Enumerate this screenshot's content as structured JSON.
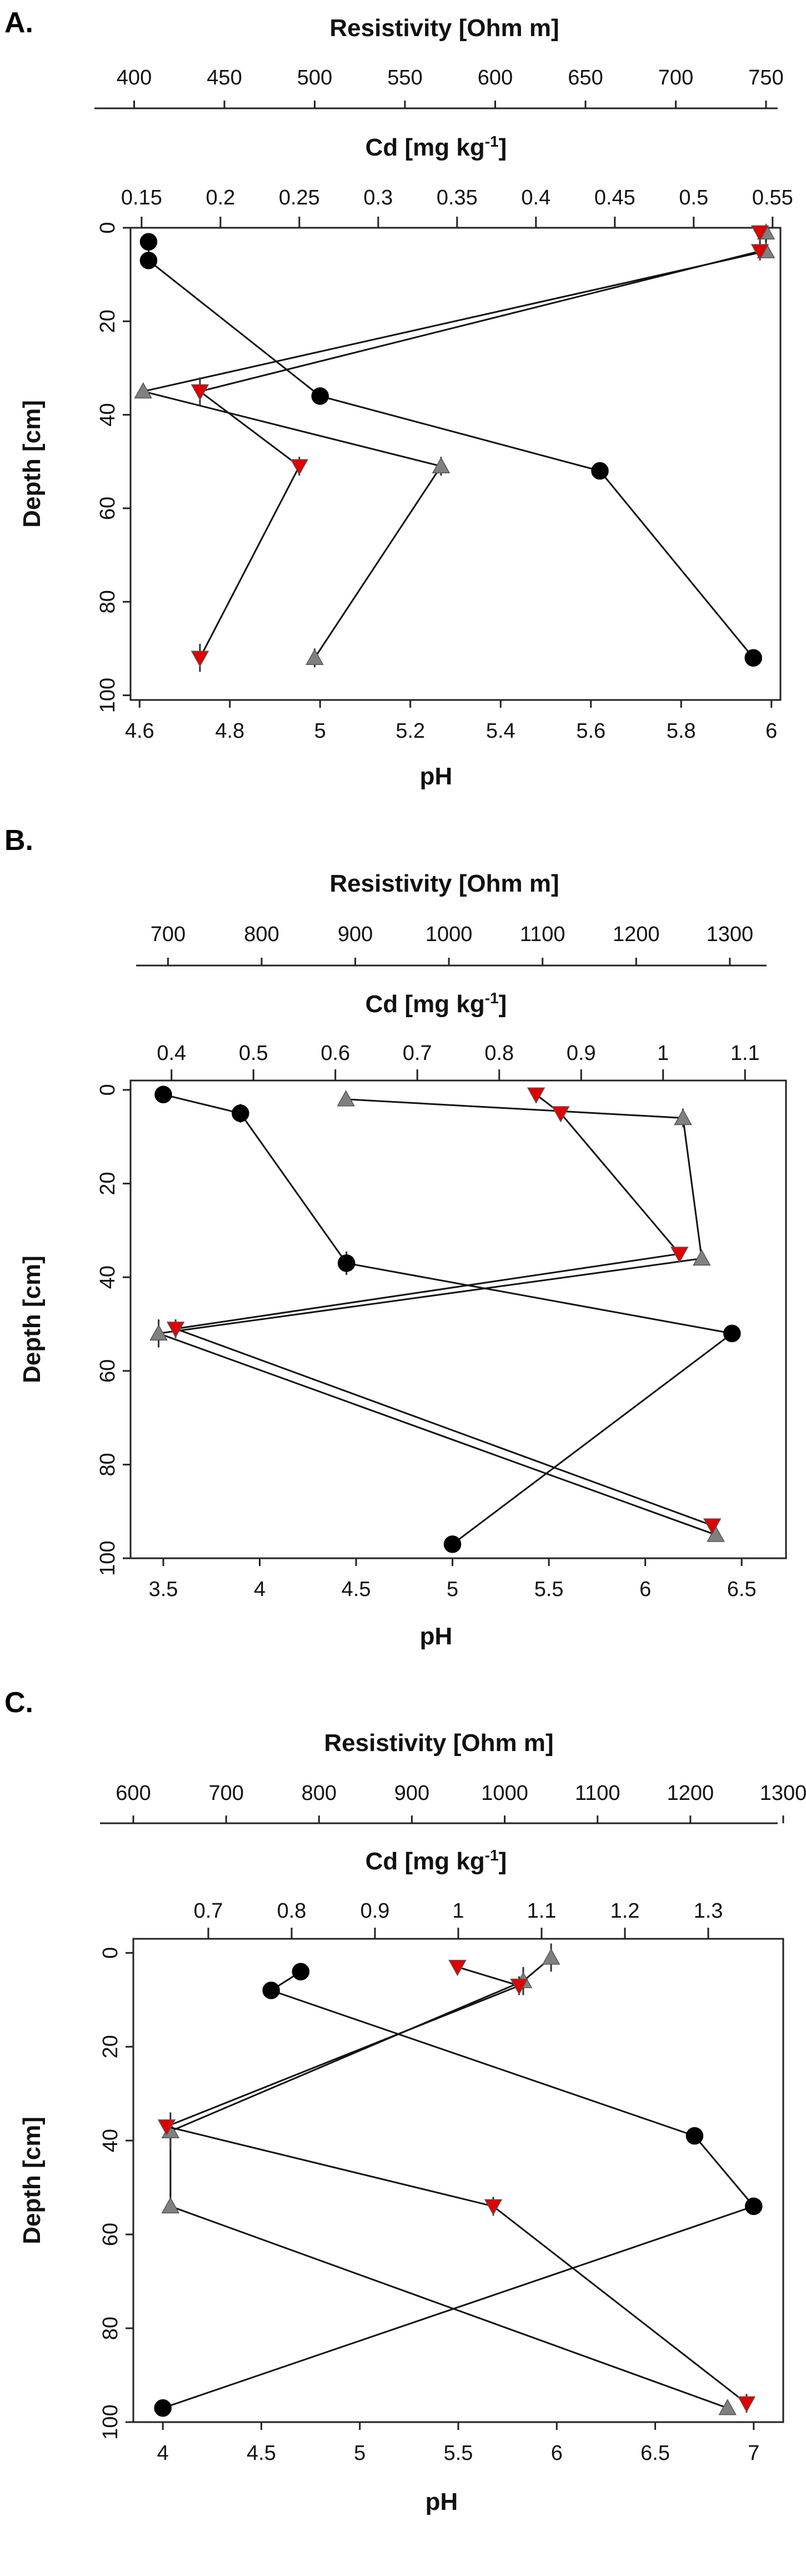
{
  "figure": {
    "panel_count": 3
  },
  "colors": {
    "pH": "#000000",
    "Cd": "#e00000",
    "Resistivity": "#808080",
    "axis": "#222222"
  },
  "legend_markers": {
    "pH": "black circle",
    "Cd": "red down-triangle",
    "Resistivity": "grey up-triangle"
  },
  "chart_data": [
    {
      "panel": "A.",
      "type": "line",
      "ylabel": "Depth [cm]",
      "yticks": [
        0,
        20,
        40,
        60,
        80,
        100
      ],
      "ylim": [
        0,
        101
      ],
      "axes": {
        "pH": {
          "label": "pH",
          "ticks": [
            4.6,
            4.8,
            5,
            5.2,
            5.4,
            5.6,
            5.8,
            6
          ],
          "tick_labels": [
            "4.6",
            "4.8",
            "5",
            "5.2",
            "5.4",
            "5.6",
            "5.8",
            "6"
          ],
          "range": [
            4.58,
            6.02
          ]
        },
        "Cd": {
          "label": "Cd [mg kg-1]",
          "label_main": "Cd [mg kg",
          "label_sup": "-1",
          "label_end": "]",
          "ticks": [
            0.15,
            0.2,
            0.25,
            0.3,
            0.35,
            0.4,
            0.45,
            0.5,
            0.55
          ],
          "tick_labels": [
            "0.15",
            "0.2",
            "0.25",
            "0.3",
            "0.35",
            "0.4",
            "0.45",
            "0.5",
            "0.55"
          ],
          "range": [
            0.143,
            0.555
          ]
        },
        "Resistivity": {
          "label": "Resistivity [Ohm m]",
          "ticks": [
            400,
            450,
            500,
            550,
            600,
            650,
            700,
            750
          ],
          "tick_labels": [
            "400",
            "450",
            "500",
            "550",
            "600",
            "650",
            "700",
            "750"
          ],
          "range": [
            398,
            758
          ]
        }
      },
      "series": [
        {
          "name": "pH",
          "marker": "circle",
          "points": [
            {
              "x": 4.62,
              "depth": 3,
              "err": 0
            },
            {
              "x": 4.62,
              "depth": 7,
              "err": 0
            },
            {
              "x": 5.0,
              "depth": 36,
              "err": 0
            },
            {
              "x": 5.62,
              "depth": 52,
              "err": 1.8
            },
            {
              "x": 5.96,
              "depth": 92,
              "err": 0
            }
          ]
        },
        {
          "name": "Cd",
          "marker": "triangle-down",
          "points": [
            {
              "x": 0.542,
              "depth": 1,
              "err": 0
            },
            {
              "x": 0.542,
              "depth": 5,
              "err": 2
            },
            {
              "x": 0.187,
              "depth": 35,
              "err": 3
            },
            {
              "x": 0.25,
              "depth": 51,
              "err": 2
            },
            {
              "x": 0.187,
              "depth": 92,
              "err": 3
            }
          ]
        },
        {
          "name": "Resistivity",
          "marker": "triangle-up",
          "points": [
            {
              "x": 750,
              "depth": 1,
              "err": 0
            },
            {
              "x": 750,
              "depth": 5,
              "err": 1
            },
            {
              "x": 405,
              "depth": 35,
              "err": 0
            },
            {
              "x": 570,
              "depth": 51,
              "err": 2
            },
            {
              "x": 500,
              "depth": 92,
              "err": 2
            }
          ]
        }
      ]
    },
    {
      "panel": "B.",
      "type": "line",
      "ylabel": "Depth [cm]",
      "yticks": [
        0,
        20,
        40,
        60,
        80,
        100
      ],
      "ylim": [
        -2,
        100
      ],
      "axes": {
        "pH": {
          "label": "pH",
          "ticks": [
            3.5,
            4,
            4.5,
            5,
            5.5,
            6,
            6.5
          ],
          "tick_labels": [
            "3.5",
            "4",
            "4.5",
            "5",
            "5.5",
            "6",
            "6.5"
          ],
          "range": [
            3.33,
            6.73
          ]
        },
        "Cd": {
          "label": "Cd [mg kg-1]",
          "label_main": "Cd [mg kg",
          "label_sup": "-1",
          "label_end": "]",
          "ticks": [
            0.4,
            0.5,
            0.6,
            0.7,
            0.8,
            0.9,
            1,
            1.1
          ],
          "tick_labels": [
            "0.4",
            "0.5",
            "0.6",
            "0.7",
            "0.8",
            "0.9",
            "1",
            "1.1"
          ],
          "range": [
            0.35,
            1.15
          ]
        },
        "Resistivity": {
          "label": "Resistivity [Ohm m]",
          "ticks": [
            700,
            800,
            900,
            1000,
            1100,
            1200,
            1300
          ],
          "tick_labels": [
            "700",
            "800",
            "900",
            "1000",
            "1100",
            "1200",
            "1300"
          ],
          "range": [
            660,
            1360
          ]
        }
      },
      "series": [
        {
          "name": "pH",
          "marker": "circle",
          "points": [
            {
              "x": 3.5,
              "depth": 1,
              "err": 0
            },
            {
              "x": 3.9,
              "depth": 5,
              "err": 2
            },
            {
              "x": 4.45,
              "depth": 37,
              "err": 2.5
            },
            {
              "x": 6.45,
              "depth": 52,
              "err": 1
            },
            {
              "x": 5.0,
              "depth": 97,
              "err": 0
            }
          ]
        },
        {
          "name": "Cd",
          "marker": "triangle-down",
          "points": [
            {
              "x": 0.845,
              "depth": 1,
              "err": 1
            },
            {
              "x": 0.875,
              "depth": 5,
              "err": 1
            },
            {
              "x": 1.02,
              "depth": 35,
              "err": 0
            },
            {
              "x": 0.405,
              "depth": 51,
              "err": 2
            },
            {
              "x": 1.06,
              "depth": 93,
              "err": 0
            }
          ]
        },
        {
          "name": "Resistivity",
          "marker": "triangle-up",
          "points": [
            {
              "x": 890,
              "depth": 2,
              "err": 0
            },
            {
              "x": 1250,
              "depth": 6,
              "err": 2
            },
            {
              "x": 1270,
              "depth": 36,
              "err": 0
            },
            {
              "x": 690,
              "depth": 52,
              "err": 3
            },
            {
              "x": 1285,
              "depth": 95,
              "err": 1
            }
          ]
        }
      ]
    },
    {
      "panel": "C.",
      "type": "line",
      "ylabel": "Depth [cm]",
      "yticks": [
        0,
        20,
        40,
        60,
        80,
        100
      ],
      "ylim": [
        -3,
        100
      ],
      "axes": {
        "pH": {
          "label": "pH",
          "ticks": [
            4,
            4.5,
            5,
            5.5,
            6,
            6.5,
            7
          ],
          "tick_labels": [
            "4",
            "4.5",
            "5",
            "5.5",
            "6",
            "6.5",
            "7"
          ],
          "range": [
            3.85,
            7.15
          ]
        },
        "Cd": {
          "label": "Cd [mg kg-1]",
          "label_main": "Cd [mg kg",
          "label_sup": "-1",
          "label_end": "]",
          "ticks": [
            0.7,
            0.8,
            0.9,
            1,
            1.1,
            1.2,
            1.3
          ],
          "tick_labels": [
            "0.7",
            "0.8",
            "0.9",
            "1",
            "1.1",
            "1.2",
            "1.3"
          ],
          "range": [
            0.61,
            1.39
          ]
        },
        "Resistivity": {
          "label": "Resistivity [Ohm m]",
          "ticks": [
            600,
            700,
            800,
            900,
            1000,
            1100,
            1200,
            1300
          ],
          "tick_labels": [
            "600",
            "700",
            "800",
            "900",
            "1000",
            "1100",
            "1200",
            "1300"
          ],
          "range": [
            600,
            1300
          ]
        }
      },
      "series": [
        {
          "name": "pH",
          "marker": "circle",
          "points": [
            {
              "x": 4.7,
              "depth": 4,
              "err": 0
            },
            {
              "x": 4.55,
              "depth": 8,
              "err": 0
            },
            {
              "x": 6.7,
              "depth": 39,
              "err": 0
            },
            {
              "x": 7.0,
              "depth": 54,
              "err": 0
            },
            {
              "x": 4.0,
              "depth": 97,
              "err": 0
            }
          ]
        },
        {
          "name": "Cd",
          "marker": "triangle-down",
          "points": [
            {
              "x": 0.999,
              "depth": 3,
              "err": 1.5
            },
            {
              "x": 1.073,
              "depth": 7,
              "err": 2
            },
            {
              "x": 0.65,
              "depth": 37,
              "err": 1.5
            },
            {
              "x": 1.042,
              "depth": 54,
              "err": 2
            },
            {
              "x": 1.346,
              "depth": 96,
              "err": 2
            }
          ]
        },
        {
          "name": "Resistivity",
          "marker": "triangle-up",
          "points": [
            {
              "x": 1050,
              "depth": 1,
              "err": 3
            },
            {
              "x": 1020,
              "depth": 6,
              "err": 3
            },
            {
              "x": 640,
              "depth": 38,
              "err": 4
            },
            {
              "x": 640,
              "depth": 54,
              "err": 0
            },
            {
              "x": 1240,
              "depth": 97,
              "err": 1
            }
          ]
        }
      ]
    }
  ]
}
